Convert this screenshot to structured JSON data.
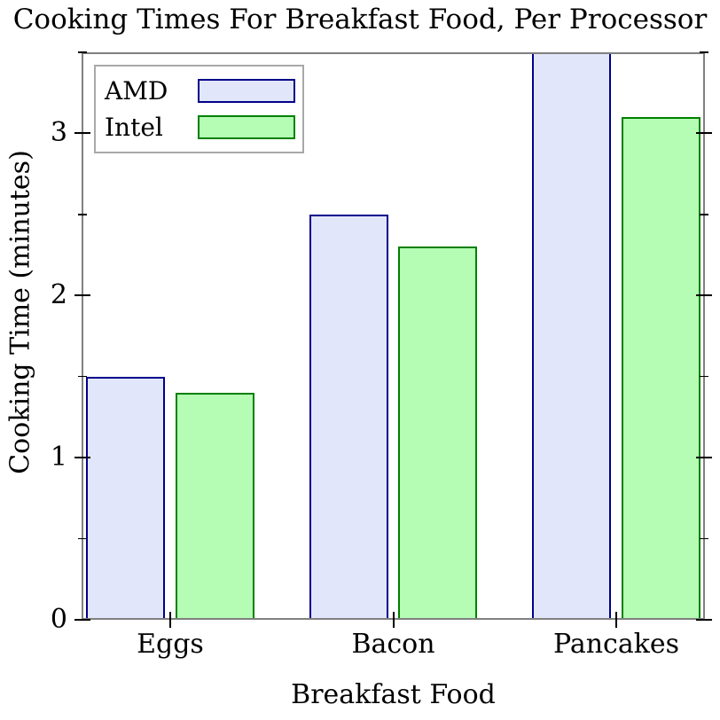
{
  "chart_data": {
    "type": "bar",
    "title": "Cooking Times For Breakfast Food, Per Processor",
    "xlabel": "Breakfast Food",
    "ylabel": "Cooking Time (minutes)",
    "categories": [
      "Eggs",
      "Bacon",
      "Pancakes"
    ],
    "series": [
      {
        "name": "AMD",
        "values": [
          1.5,
          2.5,
          3.5
        ],
        "fill": "#e2e6fa",
        "edge": "#00008b"
      },
      {
        "name": "Intel",
        "values": [
          1.4,
          2.3,
          3.1
        ],
        "fill": "#b5fcb5",
        "edge": "#008000"
      }
    ],
    "ylim": [
      0,
      3.5
    ],
    "yticks_major": [
      0,
      1,
      2,
      3
    ],
    "yticks_minor": [
      0.5,
      1.5,
      2.5,
      3.5
    ],
    "legend_position": "upper left",
    "legend_marker_side": "right",
    "grid": false
  },
  "colors": {
    "spine": "#808080",
    "tick": "#000000",
    "text": "#000000",
    "legend_border": "#a8a8a8",
    "background": "#ffffff"
  }
}
